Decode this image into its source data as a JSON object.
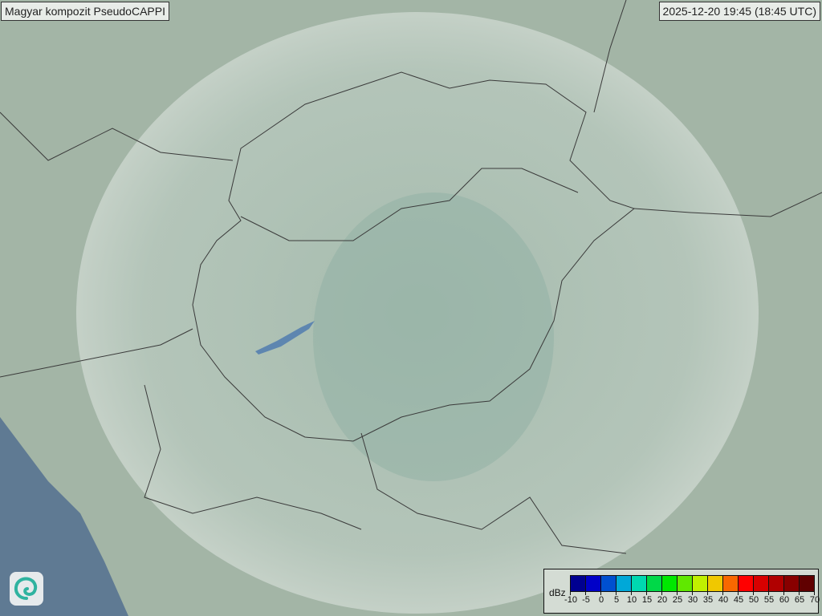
{
  "header": {
    "title": "Magyar kompozit  PseudoCAPPI",
    "timestamp": "2025-12-20 19:45 (18:45 UTC)"
  },
  "logo": {
    "icon": "swirl-logo-icon"
  },
  "legend": {
    "unit": "dBz",
    "labels": [
      "-10",
      "-5",
      "0",
      "5",
      "10",
      "15",
      "20",
      "25",
      "30",
      "35",
      "40",
      "45",
      "50",
      "55",
      "60",
      "65",
      "70"
    ],
    "colors": [
      "#000090",
      "#0000c8",
      "#0050d0",
      "#00a8d8",
      "#00d8b0",
      "#00d848",
      "#00e800",
      "#60e800",
      "#c0f000",
      "#f0c800",
      "#f86800",
      "#ff0000",
      "#d80000",
      "#b00000",
      "#880000",
      "#600000"
    ]
  },
  "colors": {
    "sea": "#5f7a93",
    "land": "#9fb3a3",
    "radar_coverage": "#dfe8e4"
  }
}
